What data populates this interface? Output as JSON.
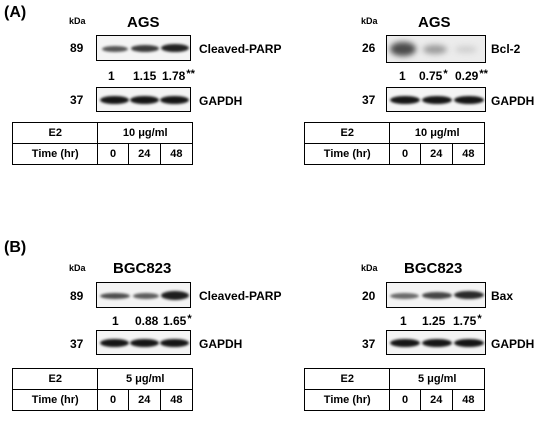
{
  "panelA": {
    "label": "(A)",
    "left": {
      "cell_line": "AGS",
      "kda": "kDa",
      "target_mw": "89",
      "target": "Cleaved-PARP",
      "quant": [
        {
          "value": "1",
          "sig": ""
        },
        {
          "value": "1.15",
          "sig": ""
        },
        {
          "value": "1.78",
          "sig": "**"
        }
      ],
      "loading_mw": "37",
      "loading": "GAPDH",
      "table": {
        "row1_label": "E2",
        "dose": "10 μg/ml",
        "row2_label": "Time (hr)",
        "times": [
          "0",
          "24",
          "48"
        ]
      }
    },
    "right": {
      "cell_line": "AGS",
      "kda": "kDa",
      "target_mw": "26",
      "target": "Bcl-2",
      "quant": [
        {
          "value": "1",
          "sig": ""
        },
        {
          "value": "0.75",
          "sig": "*"
        },
        {
          "value": "0.29",
          "sig": "**"
        }
      ],
      "loading_mw": "37",
      "loading": "GAPDH",
      "table": {
        "row1_label": "E2",
        "dose": "10 μg/ml",
        "row2_label": "Time (hr)",
        "times": [
          "0",
          "24",
          "48"
        ]
      }
    }
  },
  "panelB": {
    "label": "(B)",
    "left": {
      "cell_line": "BGC823",
      "kda": "kDa",
      "target_mw": "89",
      "target": "Cleaved-PARP",
      "quant": [
        {
          "value": "1",
          "sig": ""
        },
        {
          "value": "0.88",
          "sig": ""
        },
        {
          "value": "1.65",
          "sig": "*"
        }
      ],
      "loading_mw": "37",
      "loading": "GAPDH",
      "table": {
        "row1_label": "E2",
        "dose": "5 μg/ml",
        "row2_label": "Time (hr)",
        "times": [
          "0",
          "24",
          "48"
        ]
      }
    },
    "right": {
      "cell_line": "BGC823",
      "kda": "kDa",
      "target_mw": "20",
      "target": "Bax",
      "quant": [
        {
          "value": "1",
          "sig": ""
        },
        {
          "value": "1.25",
          "sig": ""
        },
        {
          "value": "1.75",
          "sig": "*"
        }
      ],
      "loading_mw": "37",
      "loading": "GAPDH",
      "table": {
        "row1_label": "E2",
        "dose": "5 μg/ml",
        "row2_label": "Time (hr)",
        "times": [
          "0",
          "24",
          "48"
        ]
      }
    }
  }
}
